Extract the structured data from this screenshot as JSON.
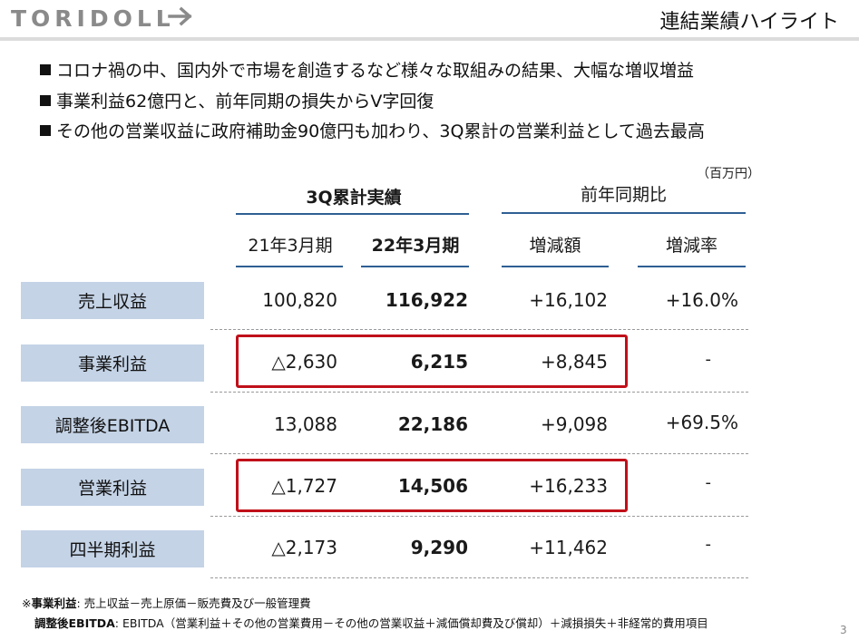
{
  "header": {
    "logo_text": "TORIDOLL",
    "title": "連結業績ハイライト"
  },
  "bullets": [
    "コロナ禍の中、国内外で市場を創造するなど様々な取組みの結果、大幅な増収増益",
    "事業利益62億円と、前年同期の損失からV字回復",
    "その他の営業収益に政府補助金90億円も加わり、3Q累計の営業利益として過去最高"
  ],
  "table": {
    "unit": "（百万円）",
    "group_3q": "3Q累計実績",
    "group_yoy": "前年同期比",
    "columns": [
      "21年3月期",
      "22年3月期",
      "増減額",
      "増減率"
    ],
    "rows": [
      {
        "label": "売上収益",
        "prev": "100,820",
        "curr": "116,922",
        "diff": "+16,102",
        "rate": "+16.0%"
      },
      {
        "label": "事業利益",
        "prev": "△2,630",
        "curr": "6,215",
        "diff": "+8,845",
        "rate": "-"
      },
      {
        "label": "調整後EBITDA",
        "prev": "13,088",
        "curr": "22,186",
        "diff": "+9,098",
        "rate": "+69.5%"
      },
      {
        "label": "営業利益",
        "prev": "△1,727",
        "curr": "14,506",
        "diff": "+16,233",
        "rate": "-"
      },
      {
        "label": "四半期利益",
        "prev": "△2,173",
        "curr": "9,290",
        "diff": "+11,462",
        "rate": "-"
      }
    ],
    "highlight_color": "#c0101a",
    "label_bg": "#c4d3e6",
    "rule_color": "#2f5f93"
  },
  "footnotes": {
    "line1_prefix": "※",
    "line1_term": "事業利益",
    "line1_text": ": 売上収益－売上原価－販売費及び一般管理費",
    "line2_term": "調整後EBITDA",
    "line2_text": ": EBITDA（営業利益＋その他の営業費用－その他の営業収益＋減価償却費及び償却）＋減損損失＋非経常的費用項目"
  },
  "page_number": "3"
}
